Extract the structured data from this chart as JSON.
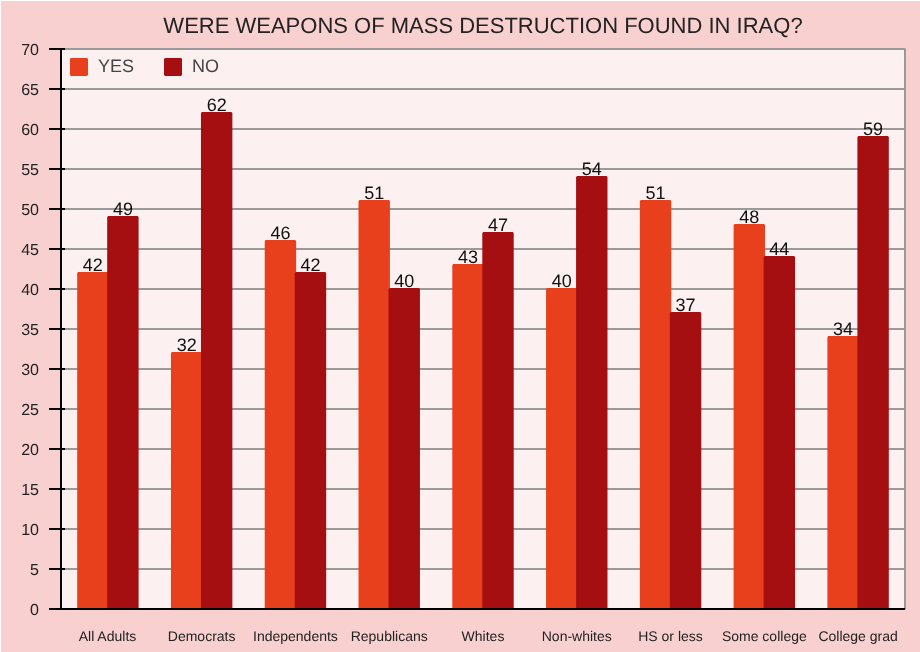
{
  "chart_data": {
    "type": "bar",
    "title": "WERE WEAPONS OF MASS DESTRUCTION FOUND IN IRAQ?",
    "categories": [
      "All Adults",
      "Democrats",
      "Independents",
      "Republicans",
      "Whites",
      "Non-whites",
      "HS or less",
      "Some college",
      "College grad"
    ],
    "series": [
      {
        "name": "YES",
        "color": "#e8401c",
        "values": [
          42,
          32,
          46,
          51,
          43,
          40,
          51,
          48,
          34
        ]
      },
      {
        "name": "NO",
        "color": "#a50f12",
        "values": [
          49,
          62,
          42,
          40,
          47,
          54,
          37,
          44,
          59
        ]
      }
    ],
    "ylim": [
      0,
      70
    ],
    "yticks": [
      0,
      5,
      10,
      15,
      20,
      25,
      30,
      35,
      40,
      45,
      50,
      55,
      60,
      65,
      70
    ],
    "grid": "y",
    "legend": "top left",
    "data_labels": true
  }
}
